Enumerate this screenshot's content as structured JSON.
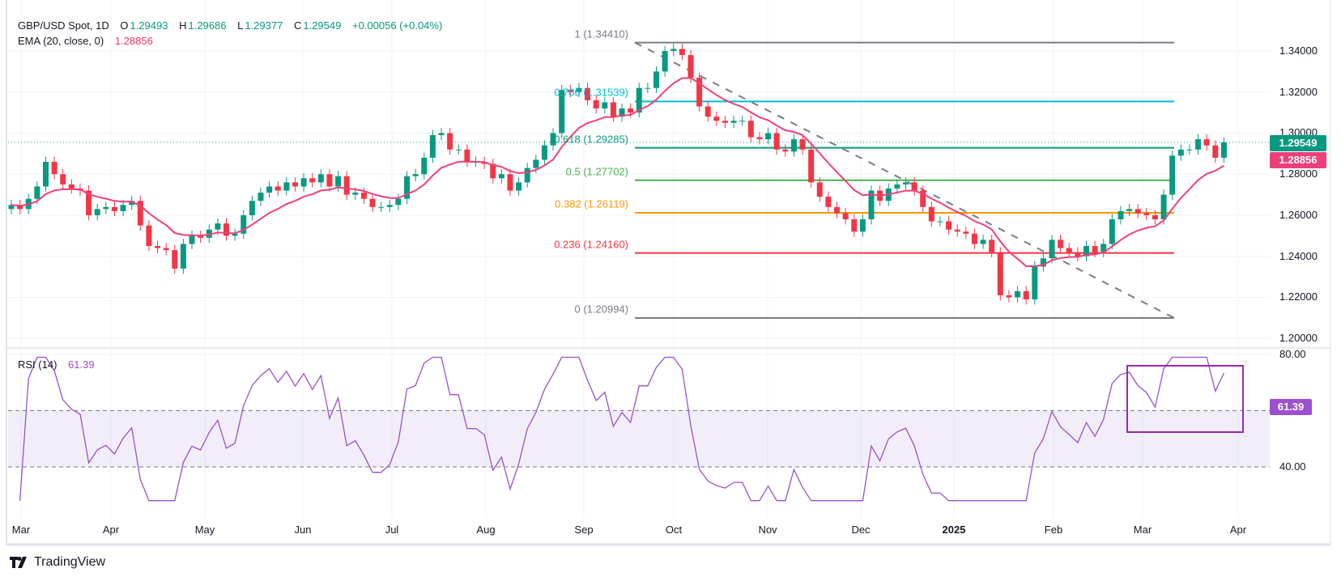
{
  "header": {
    "symbol": "GBP/USD Spot, 1D",
    "open_label": "O",
    "open": "1.29493",
    "high_label": "H",
    "high": "1.29686",
    "low_label": "L",
    "low": "1.29377",
    "close_label": "C",
    "close": "1.29549",
    "change": "+0.00056 (+0.04%)",
    "ema_label": "EMA (20, close, 0)",
    "ema_value": "1.28856"
  },
  "rsi": {
    "label": "RSI (14)",
    "value": "61.39"
  },
  "brand": "TradingView",
  "colors": {
    "up": "#089981",
    "down": "#f23645",
    "ema": "#f0407a",
    "rsi": "#9c4fd0",
    "rsi_box": "#9c27b0",
    "grid": "#f0f3fa"
  },
  "chart_data": [
    {
      "type": "candlestick",
      "title": "GBP/USD Spot, 1D",
      "ylim": [
        1.2,
        1.345
      ],
      "y_ticks": [
        "1.34000",
        "1.32000",
        "1.30000",
        "1.28000",
        "1.26000",
        "1.24000",
        "1.22000",
        "1.20000"
      ],
      "x_ticks": [
        "Mar",
        "Apr",
        "May",
        "Jun",
        "Jul",
        "Aug",
        "Sep",
        "Oct",
        "Nov",
        "Dec",
        "2025",
        "Feb",
        "Mar",
        "Apr"
      ],
      "close": [
        1.265,
        1.263,
        1.268,
        1.274,
        1.286,
        1.28,
        1.275,
        1.273,
        1.272,
        1.26,
        1.263,
        1.264,
        1.262,
        1.265,
        1.267,
        1.255,
        1.245,
        1.244,
        1.243,
        1.234,
        1.246,
        1.25,
        1.249,
        1.253,
        1.256,
        1.25,
        1.251,
        1.26,
        1.267,
        1.271,
        1.274,
        1.272,
        1.276,
        1.274,
        1.278,
        1.276,
        1.28,
        1.274,
        1.279,
        1.27,
        1.271,
        1.268,
        1.264,
        1.264,
        1.265,
        1.268,
        1.279,
        1.28,
        1.288,
        1.299,
        1.3,
        1.292,
        1.292,
        1.286,
        1.286,
        1.285,
        1.278,
        1.28,
        1.272,
        1.276,
        1.283,
        1.287,
        1.294,
        1.3,
        1.321,
        1.32,
        1.322,
        1.316,
        1.312,
        1.315,
        1.308,
        1.312,
        1.31,
        1.322,
        1.322,
        1.33,
        1.34,
        1.341,
        1.338,
        1.327,
        1.313,
        1.308,
        1.306,
        1.305,
        1.306,
        1.306,
        1.298,
        1.297,
        1.3,
        1.292,
        1.291,
        1.297,
        1.292,
        1.276,
        1.269,
        1.264,
        1.261,
        1.258,
        1.252,
        1.258,
        1.272,
        1.267,
        1.273,
        1.275,
        1.276,
        1.272,
        1.264,
        1.257,
        1.257,
        1.253,
        1.252,
        1.251,
        1.246,
        1.248,
        1.242,
        1.221,
        1.22,
        1.223,
        1.219,
        1.235,
        1.239,
        1.248,
        1.244,
        1.242,
        1.24,
        1.245,
        1.242,
        1.246,
        1.258,
        1.262,
        1.263,
        1.261,
        1.26,
        1.258,
        1.27,
        1.289,
        1.292,
        1.292,
        1.297,
        1.294,
        1.288,
        1.2955
      ],
      "last_price": "1.29549",
      "ema_last": "1.28856",
      "fibonacci": [
        {
          "level": "1",
          "price": 1.3441,
          "label": "1 (1.34410)",
          "color": "#787b86"
        },
        {
          "level": "0.786",
          "price": 1.31539,
          "label": "0.786 (1.31539)",
          "color": "#00bcd4"
        },
        {
          "level": "0.618",
          "price": 1.29285,
          "label": "0.618 (1.29285)",
          "color": "#089981"
        },
        {
          "level": "0.5",
          "price": 1.27702,
          "label": "0.5 (1.27702)",
          "color": "#4caf50"
        },
        {
          "level": "0.382",
          "price": 1.26119,
          "label": "0.382 (1.26119)",
          "color": "#ff9800"
        },
        {
          "level": "0.236",
          "price": 1.2416,
          "label": "0.236 (1.24160)",
          "color": "#f23645"
        },
        {
          "level": "0",
          "price": 1.20994,
          "label": "0 (1.20994)",
          "color": "#787b86"
        }
      ]
    },
    {
      "type": "line",
      "title": "RSI (14)",
      "ylim": [
        30,
        80
      ],
      "y_ticks": [
        "80.00",
        "40.00"
      ],
      "band": [
        40,
        60
      ],
      "last_value": "61.39"
    }
  ]
}
